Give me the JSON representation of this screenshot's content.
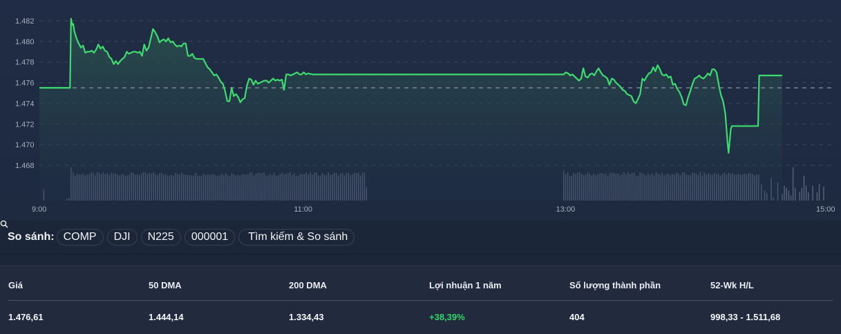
{
  "chart_data": {
    "type": "line",
    "title": "",
    "xlabel": "",
    "ylabel": "",
    "x_ticks": [
      "9:00",
      "11:00",
      "13:00",
      "15:00"
    ],
    "y_ticks": [
      "1.482",
      "1.480",
      "1.478",
      "1.476",
      "1.474",
      "1.472",
      "1.470",
      "1.468"
    ],
    "ylim": [
      1.4665,
      1.4833
    ],
    "reference_line": 1.4755,
    "grid": true,
    "colors": {
      "line": "#3ddc6f",
      "fill_top": "#244a45",
      "volume": "#55607a",
      "grid": "#3a4559",
      "reference": "#8d96a6"
    },
    "series": [
      {
        "name": "Price",
        "points": [
          [
            0,
            1.4755
          ],
          [
            14,
            1.4755
          ],
          [
            14.5,
            1.4822
          ],
          [
            15,
            1.4816
          ],
          [
            15.5,
            1.4817
          ],
          [
            16,
            1.481
          ],
          [
            17,
            1.4803
          ],
          [
            18,
            1.4798
          ],
          [
            19,
            1.4794
          ],
          [
            20,
            1.4796
          ],
          [
            21,
            1.4789
          ],
          [
            22,
            1.479
          ],
          [
            23,
            1.479
          ],
          [
            24,
            1.4791
          ],
          [
            25,
            1.4789
          ],
          [
            26,
            1.4792
          ],
          [
            27,
            1.4797
          ],
          [
            28,
            1.4793
          ],
          [
            29,
            1.4795
          ],
          [
            30,
            1.4791
          ],
          [
            31,
            1.479
          ],
          [
            32,
            1.4785
          ],
          [
            33,
            1.4783
          ],
          [
            34,
            1.4778
          ],
          [
            35,
            1.4781
          ],
          [
            36,
            1.4778
          ],
          [
            37,
            1.4781
          ],
          [
            38,
            1.4783
          ],
          [
            39,
            1.4785
          ],
          [
            40,
            1.479
          ],
          [
            41,
            1.4788
          ],
          [
            42,
            1.4789
          ],
          [
            43,
            1.479
          ],
          [
            44,
            1.479
          ],
          [
            45,
            1.4789
          ],
          [
            46,
            1.479
          ],
          [
            47,
            1.4786
          ],
          [
            48,
            1.4797
          ],
          [
            49,
            1.4791
          ],
          [
            50,
            1.4794
          ],
          [
            52,
            1.4812
          ],
          [
            53,
            1.4809
          ],
          [
            54,
            1.4805
          ],
          [
            55,
            1.4799
          ],
          [
            56,
            1.4801
          ],
          [
            57,
            1.4802
          ],
          [
            58,
            1.48
          ],
          [
            59,
            1.4803
          ],
          [
            60,
            1.4799
          ],
          [
            61,
            1.48
          ],
          [
            62,
            1.4797
          ],
          [
            63,
            1.4795
          ],
          [
            64,
            1.4796
          ],
          [
            65,
            1.4795
          ],
          [
            66,
            1.4798
          ],
          [
            67,
            1.4798
          ],
          [
            68,
            1.4786
          ],
          [
            69,
            1.4786
          ],
          [
            70,
            1.4788
          ],
          [
            71,
            1.4784
          ],
          [
            72,
            1.4783
          ],
          [
            73,
            1.4783
          ],
          [
            74,
            1.4783
          ],
          [
            75,
            1.4783
          ],
          [
            76,
            1.4779
          ],
          [
            77,
            1.4775
          ],
          [
            78,
            1.4773
          ],
          [
            79,
            1.477
          ],
          [
            80,
            1.4767
          ],
          [
            81,
            1.4768
          ],
          [
            82,
            1.4765
          ],
          [
            83,
            1.4761
          ],
          [
            84,
            1.4759
          ],
          [
            85,
            1.4752
          ],
          [
            86,
            1.4742
          ],
          [
            87,
            1.4742
          ],
          [
            88,
            1.4755
          ],
          [
            89,
            1.4747
          ],
          [
            90,
            1.4749
          ],
          [
            91,
            1.4746
          ],
          [
            92,
            1.4741
          ],
          [
            93,
            1.4744
          ],
          [
            94,
            1.4745
          ],
          [
            95,
            1.4757
          ],
          [
            96,
            1.4764
          ],
          [
            97,
            1.4763
          ],
          [
            98,
            1.4758
          ],
          [
            99,
            1.4762
          ],
          [
            100,
            1.4759
          ],
          [
            101,
            1.476
          ],
          [
            102,
            1.4761
          ],
          [
            103,
            1.4762
          ],
          [
            104,
            1.4762
          ],
          [
            105,
            1.476
          ],
          [
            106,
            1.4762
          ],
          [
            107,
            1.4764
          ],
          [
            108,
            1.4762
          ],
          [
            109,
            1.4763
          ],
          [
            110,
            1.4762
          ],
          [
            111,
            1.4763
          ],
          [
            112,
            1.4753
          ],
          [
            113,
            1.4768
          ],
          [
            114,
            1.4768
          ],
          [
            115,
            1.4767
          ],
          [
            116,
            1.4768
          ],
          [
            117,
            1.4769
          ],
          [
            118,
            1.477
          ],
          [
            119,
            1.4768
          ],
          [
            120,
            1.4768
          ],
          [
            121,
            1.477
          ],
          [
            122,
            1.4768
          ],
          [
            123,
            1.4769
          ],
          [
            125,
            1.4768
          ],
          [
            240,
            1.4768
          ],
          [
            241,
            1.477
          ],
          [
            242,
            1.4769
          ],
          [
            243,
            1.4767
          ],
          [
            244,
            1.4768
          ],
          [
            245,
            1.4766
          ],
          [
            246,
            1.4764
          ],
          [
            247,
            1.4762
          ],
          [
            248,
            1.4764
          ],
          [
            249,
            1.4774
          ],
          [
            250,
            1.4766
          ],
          [
            251,
            1.4765
          ],
          [
            252,
            1.4768
          ],
          [
            253,
            1.4769
          ],
          [
            254,
            1.4767
          ],
          [
            255,
            1.4771
          ],
          [
            256,
            1.4774
          ],
          [
            257,
            1.477
          ],
          [
            258,
            1.4767
          ],
          [
            259,
            1.4766
          ],
          [
            260,
            1.4764
          ],
          [
            261,
            1.4758
          ],
          [
            262,
            1.4764
          ],
          [
            263,
            1.4763
          ],
          [
            264,
            1.476
          ],
          [
            265,
            1.4758
          ],
          [
            266,
            1.4756
          ],
          [
            267,
            1.4753
          ],
          [
            268,
            1.4752
          ],
          [
            269,
            1.4749
          ],
          [
            270,
            1.4748
          ],
          [
            271,
            1.4747
          ],
          [
            272,
            1.4742
          ],
          [
            273,
            1.474
          ],
          [
            274,
            1.4744
          ],
          [
            275,
            1.4749
          ],
          [
            276,
            1.4764
          ],
          [
            277,
            1.4762
          ],
          [
            278,
            1.4766
          ],
          [
            279,
            1.4769
          ],
          [
            280,
            1.477
          ],
          [
            281,
            1.4775
          ],
          [
            282,
            1.4771
          ],
          [
            283,
            1.4777
          ],
          [
            284,
            1.4773
          ],
          [
            285,
            1.4768
          ],
          [
            286,
            1.4767
          ],
          [
            287,
            1.4768
          ],
          [
            288,
            1.4765
          ],
          [
            289,
            1.4766
          ],
          [
            290,
            1.4758
          ],
          [
            291,
            1.4759
          ],
          [
            292,
            1.4754
          ],
          [
            293,
            1.4751
          ],
          [
            294,
            1.4746
          ],
          [
            295,
            1.4739
          ],
          [
            296,
            1.4738
          ],
          [
            297,
            1.4746
          ],
          [
            298,
            1.4752
          ],
          [
            299,
            1.4759
          ],
          [
            300,
            1.4764
          ],
          [
            301,
            1.4765
          ],
          [
            302,
            1.4767
          ],
          [
            303,
            1.4765
          ],
          [
            304,
            1.4764
          ],
          [
            305,
            1.4766
          ],
          [
            306,
            1.4769
          ],
          [
            307,
            1.4767
          ],
          [
            308,
            1.4773
          ],
          [
            309,
            1.4773
          ],
          [
            310,
            1.477
          ],
          [
            311,
            1.4758
          ],
          [
            312,
            1.4748
          ],
          [
            313,
            1.4742
          ],
          [
            314,
            1.473
          ],
          [
            315,
            1.4702
          ],
          [
            315.5,
            1.4692
          ],
          [
            316.5,
            1.4715
          ],
          [
            317,
            1.4718
          ],
          [
            329,
            1.4718
          ],
          [
            329.5,
            1.4767
          ],
          [
            340,
            1.4767
          ]
        ]
      }
    ],
    "volume": {
      "name": "Volume",
      "note": "relative bar heights 0-1",
      "pre_open": [
        [
          2,
          0.33
        ],
        [
          12.5,
          0.05
        ],
        [
          13.5,
          0.08
        ]
      ],
      "morning": {
        "start": 14.5,
        "end": 150,
        "base": 0.8
      },
      "afternoon": {
        "start": 240,
        "end": 330,
        "base": 0.8
      },
      "closing_bars": [
        [
          330.5,
          0.5
        ],
        [
          332,
          0.3
        ],
        [
          333,
          0.22
        ],
        [
          335,
          0.68
        ],
        [
          336,
          0.08
        ],
        [
          338,
          0.55
        ],
        [
          340,
          0.2
        ],
        [
          341,
          0.45
        ],
        [
          342,
          0.38
        ],
        [
          343,
          0.3
        ],
        [
          344,
          0.15
        ],
        [
          345,
          1.0
        ],
        [
          346,
          0.38
        ],
        [
          348,
          0.26
        ],
        [
          349,
          0.38
        ],
        [
          350,
          0.75
        ],
        [
          351,
          0.45
        ],
        [
          352,
          0.25
        ],
        [
          354,
          0.45
        ],
        [
          356,
          0.25
        ],
        [
          357,
          0.5
        ],
        [
          359,
          0.42
        ]
      ]
    }
  },
  "compare": {
    "label": "So sánh:",
    "chips": [
      "COMP",
      "DJI",
      "N225",
      "000001"
    ],
    "search_label": "Tìm kiếm & So sánh"
  },
  "stats": {
    "headers": [
      "Giá",
      "50 DMA",
      "200 DMA",
      "Lợi nhuận 1 năm",
      "Số lượng thành phần",
      "52-Wk H/L"
    ],
    "values": [
      "1.476,61",
      "1.444,14",
      "1.334,43",
      "+38,39%",
      "404",
      "998,33 - 1.511,68"
    ]
  }
}
